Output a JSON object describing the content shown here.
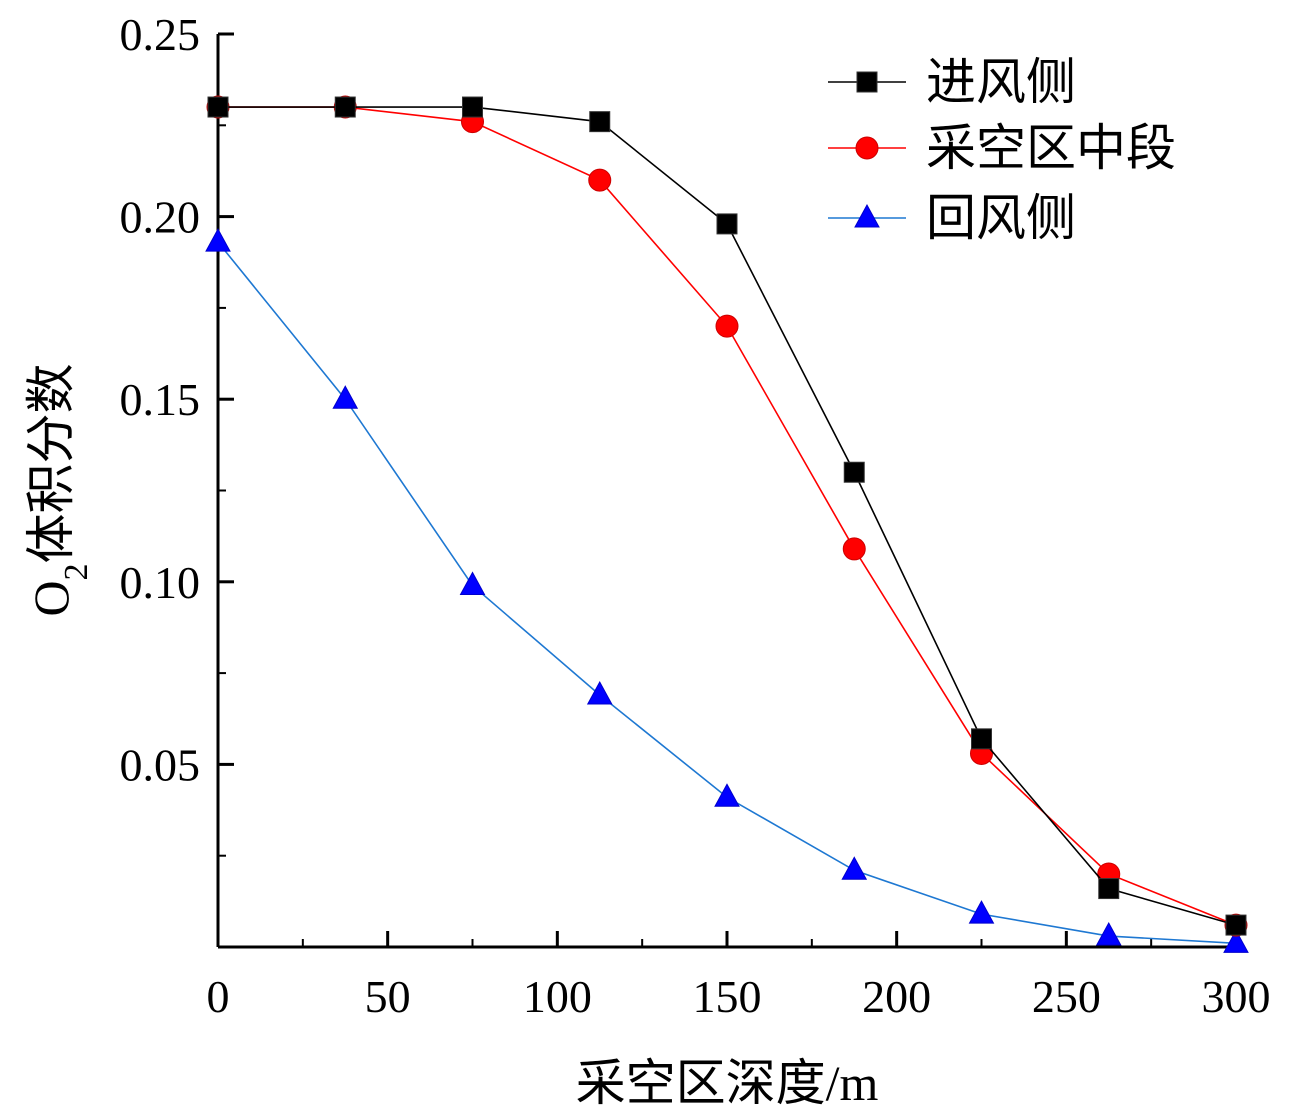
{
  "chart_data": {
    "type": "line",
    "title": "",
    "xlabel": "采空区深度/m",
    "ylabel": "O₂体积分数",
    "ylabel_parts": {
      "prefix": "O",
      "subscript": "2",
      "suffix": "体积分数"
    },
    "xlim": [
      0,
      300
    ],
    "ylim": [
      0,
      0.25
    ],
    "x_ticks": [
      "0",
      "50",
      "100",
      "150",
      "200",
      "250",
      "300"
    ],
    "x_tick_values": [
      0,
      50,
      100,
      150,
      200,
      250,
      300
    ],
    "y_ticks": [
      "0.05",
      "0.10",
      "0.15",
      "0.20",
      "0.25"
    ],
    "y_tick_values": [
      0.05,
      0.1,
      0.15,
      0.2,
      0.25
    ],
    "grid": false,
    "legend_position": "top-right",
    "series": [
      {
        "name": "进风侧",
        "color": "#000000",
        "marker": "square",
        "x": [
          0,
          37.5,
          75,
          112.5,
          150,
          187.5,
          225,
          262.5,
          300
        ],
        "values": [
          0.23,
          0.23,
          0.23,
          0.226,
          0.198,
          0.13,
          0.057,
          0.016,
          0.006
        ]
      },
      {
        "name": "采空区中段",
        "color": "#ff0000",
        "marker": "circle",
        "x": [
          0,
          37.5,
          75,
          112.5,
          150,
          187.5,
          225,
          262.5,
          300
        ],
        "values": [
          0.23,
          0.23,
          0.226,
          0.21,
          0.17,
          0.109,
          0.053,
          0.02,
          0.006
        ]
      },
      {
        "name": "回风侧",
        "color": "#0000ff",
        "line_color": "#1e78d2",
        "marker": "triangle",
        "x": [
          0,
          37.5,
          75,
          112.5,
          150,
          187.5,
          225,
          262.5,
          300
        ],
        "values": [
          0.193,
          0.15,
          0.099,
          0.069,
          0.041,
          0.021,
          0.009,
          0.003,
          0.001
        ]
      }
    ]
  }
}
